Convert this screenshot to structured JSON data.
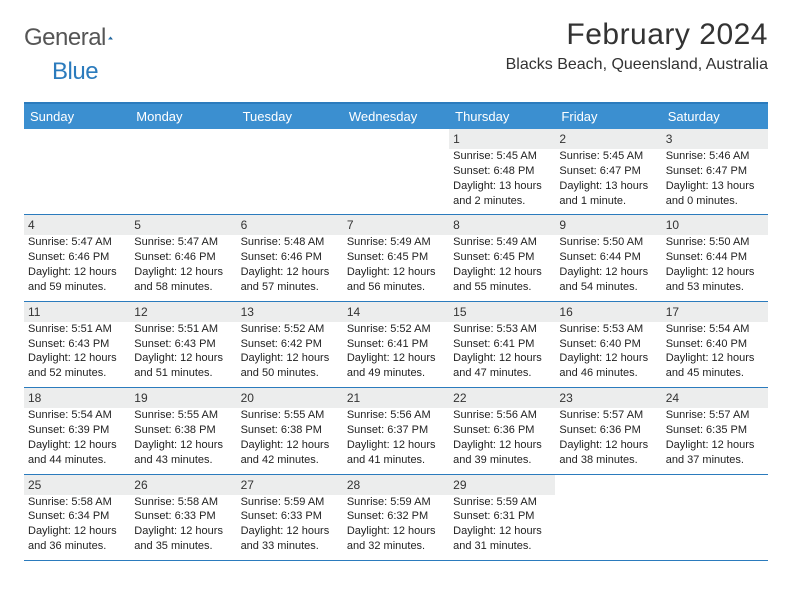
{
  "brand": {
    "word1": "General",
    "word2": "Blue"
  },
  "title": "February 2024",
  "location": "Blacks Beach, Queensland, Australia",
  "colors": {
    "accent": "#3b8fd0",
    "rule": "#2b7bbd",
    "daynum_bg": "#eceded",
    "text": "#222222",
    "bg": "#ffffff"
  },
  "day_labels": [
    "Sunday",
    "Monday",
    "Tuesday",
    "Wednesday",
    "Thursday",
    "Friday",
    "Saturday"
  ],
  "weeks": [
    [
      null,
      null,
      null,
      null,
      {
        "n": "1",
        "sr": "Sunrise: 5:45 AM",
        "ss": "Sunset: 6:48 PM",
        "dl": "Daylight: 13 hours and 2 minutes."
      },
      {
        "n": "2",
        "sr": "Sunrise: 5:45 AM",
        "ss": "Sunset: 6:47 PM",
        "dl": "Daylight: 13 hours and 1 minute."
      },
      {
        "n": "3",
        "sr": "Sunrise: 5:46 AM",
        "ss": "Sunset: 6:47 PM",
        "dl": "Daylight: 13 hours and 0 minutes."
      }
    ],
    [
      {
        "n": "4",
        "sr": "Sunrise: 5:47 AM",
        "ss": "Sunset: 6:46 PM",
        "dl": "Daylight: 12 hours and 59 minutes."
      },
      {
        "n": "5",
        "sr": "Sunrise: 5:47 AM",
        "ss": "Sunset: 6:46 PM",
        "dl": "Daylight: 12 hours and 58 minutes."
      },
      {
        "n": "6",
        "sr": "Sunrise: 5:48 AM",
        "ss": "Sunset: 6:46 PM",
        "dl": "Daylight: 12 hours and 57 minutes."
      },
      {
        "n": "7",
        "sr": "Sunrise: 5:49 AM",
        "ss": "Sunset: 6:45 PM",
        "dl": "Daylight: 12 hours and 56 minutes."
      },
      {
        "n": "8",
        "sr": "Sunrise: 5:49 AM",
        "ss": "Sunset: 6:45 PM",
        "dl": "Daylight: 12 hours and 55 minutes."
      },
      {
        "n": "9",
        "sr": "Sunrise: 5:50 AM",
        "ss": "Sunset: 6:44 PM",
        "dl": "Daylight: 12 hours and 54 minutes."
      },
      {
        "n": "10",
        "sr": "Sunrise: 5:50 AM",
        "ss": "Sunset: 6:44 PM",
        "dl": "Daylight: 12 hours and 53 minutes."
      }
    ],
    [
      {
        "n": "11",
        "sr": "Sunrise: 5:51 AM",
        "ss": "Sunset: 6:43 PM",
        "dl": "Daylight: 12 hours and 52 minutes."
      },
      {
        "n": "12",
        "sr": "Sunrise: 5:51 AM",
        "ss": "Sunset: 6:43 PM",
        "dl": "Daylight: 12 hours and 51 minutes."
      },
      {
        "n": "13",
        "sr": "Sunrise: 5:52 AM",
        "ss": "Sunset: 6:42 PM",
        "dl": "Daylight: 12 hours and 50 minutes."
      },
      {
        "n": "14",
        "sr": "Sunrise: 5:52 AM",
        "ss": "Sunset: 6:41 PM",
        "dl": "Daylight: 12 hours and 49 minutes."
      },
      {
        "n": "15",
        "sr": "Sunrise: 5:53 AM",
        "ss": "Sunset: 6:41 PM",
        "dl": "Daylight: 12 hours and 47 minutes."
      },
      {
        "n": "16",
        "sr": "Sunrise: 5:53 AM",
        "ss": "Sunset: 6:40 PM",
        "dl": "Daylight: 12 hours and 46 minutes."
      },
      {
        "n": "17",
        "sr": "Sunrise: 5:54 AM",
        "ss": "Sunset: 6:40 PM",
        "dl": "Daylight: 12 hours and 45 minutes."
      }
    ],
    [
      {
        "n": "18",
        "sr": "Sunrise: 5:54 AM",
        "ss": "Sunset: 6:39 PM",
        "dl": "Daylight: 12 hours and 44 minutes."
      },
      {
        "n": "19",
        "sr": "Sunrise: 5:55 AM",
        "ss": "Sunset: 6:38 PM",
        "dl": "Daylight: 12 hours and 43 minutes."
      },
      {
        "n": "20",
        "sr": "Sunrise: 5:55 AM",
        "ss": "Sunset: 6:38 PM",
        "dl": "Daylight: 12 hours and 42 minutes."
      },
      {
        "n": "21",
        "sr": "Sunrise: 5:56 AM",
        "ss": "Sunset: 6:37 PM",
        "dl": "Daylight: 12 hours and 41 minutes."
      },
      {
        "n": "22",
        "sr": "Sunrise: 5:56 AM",
        "ss": "Sunset: 6:36 PM",
        "dl": "Daylight: 12 hours and 39 minutes."
      },
      {
        "n": "23",
        "sr": "Sunrise: 5:57 AM",
        "ss": "Sunset: 6:36 PM",
        "dl": "Daylight: 12 hours and 38 minutes."
      },
      {
        "n": "24",
        "sr": "Sunrise: 5:57 AM",
        "ss": "Sunset: 6:35 PM",
        "dl": "Daylight: 12 hours and 37 minutes."
      }
    ],
    [
      {
        "n": "25",
        "sr": "Sunrise: 5:58 AM",
        "ss": "Sunset: 6:34 PM",
        "dl": "Daylight: 12 hours and 36 minutes."
      },
      {
        "n": "26",
        "sr": "Sunrise: 5:58 AM",
        "ss": "Sunset: 6:33 PM",
        "dl": "Daylight: 12 hours and 35 minutes."
      },
      {
        "n": "27",
        "sr": "Sunrise: 5:59 AM",
        "ss": "Sunset: 6:33 PM",
        "dl": "Daylight: 12 hours and 33 minutes."
      },
      {
        "n": "28",
        "sr": "Sunrise: 5:59 AM",
        "ss": "Sunset: 6:32 PM",
        "dl": "Daylight: 12 hours and 32 minutes."
      },
      {
        "n": "29",
        "sr": "Sunrise: 5:59 AM",
        "ss": "Sunset: 6:31 PM",
        "dl": "Daylight: 12 hours and 31 minutes."
      },
      null,
      null
    ]
  ]
}
